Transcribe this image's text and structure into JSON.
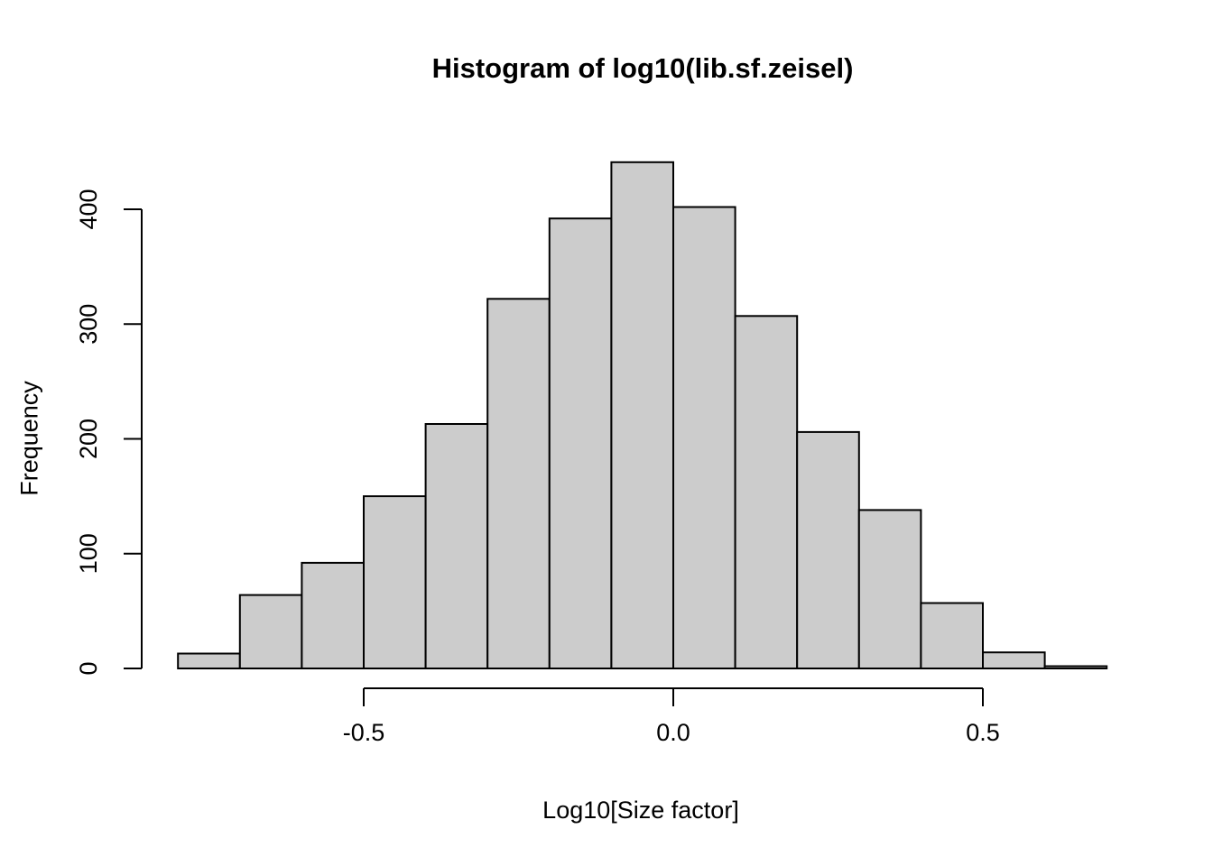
{
  "chart": {
    "title": "Histogram of log10(lib.sf.zeisel)",
    "xlabel": "Log10[Size factor]",
    "ylabel": "Frequency"
  },
  "chart_data": {
    "type": "bar",
    "subtype": "histogram",
    "title": "Histogram of log10(lib.sf.zeisel)",
    "xlabel": "Log10[Size factor]",
    "ylabel": "Frequency",
    "bin_edges": [
      -0.8,
      -0.7,
      -0.6,
      -0.5,
      -0.4,
      -0.3,
      -0.2,
      -0.1,
      0.0,
      0.1,
      0.2,
      0.3,
      0.4,
      0.5,
      0.6,
      0.7
    ],
    "frequencies": [
      13,
      64,
      92,
      150,
      213,
      322,
      392,
      441,
      402,
      307,
      206,
      138,
      57,
      14,
      2
    ],
    "x_ticks": {
      "values": [
        -0.5,
        0.0,
        0.5
      ],
      "labels": [
        "-0.5",
        "0.0",
        "0.5"
      ]
    },
    "y_ticks": {
      "values": [
        0,
        100,
        200,
        300,
        400
      ],
      "labels": [
        "0",
        "100",
        "200",
        "300",
        "400"
      ]
    },
    "xlim": [
      -0.8,
      0.7
    ],
    "ylim": [
      0,
      441
    ],
    "y_axis_range": [
      0,
      400
    ],
    "grid": false,
    "legend": null,
    "colors": {
      "bar_fill": "#cccccc",
      "bar_border": "#000000",
      "axis": "#000000",
      "text": "#000000",
      "background": "#ffffff"
    }
  }
}
